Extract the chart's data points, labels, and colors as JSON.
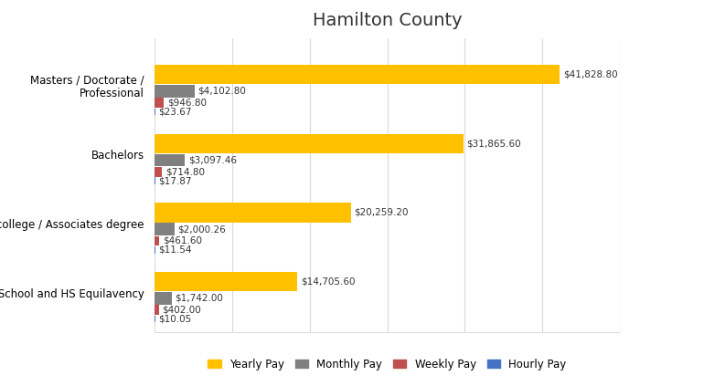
{
  "title": "Hamilton County",
  "categories": [
    "Masters / Doctorate /\nProfessional",
    "Bachelors",
    "Some college / Associates degree",
    "High School and HS Equilavency"
  ],
  "series": {
    "Yearly Pay": [
      41828.8,
      31865.6,
      20259.2,
      14705.6
    ],
    "Monthly Pay": [
      4102.8,
      3097.46,
      2000.26,
      1742.0
    ],
    "Weekly Pay": [
      946.8,
      714.8,
      461.6,
      402.0
    ],
    "Hourly Pay": [
      23.67,
      17.87,
      11.54,
      10.05
    ]
  },
  "colors": {
    "Yearly Pay": "#FFC000",
    "Monthly Pay": "#808080",
    "Weekly Pay": "#C0504D",
    "Hourly Pay": "#4472C4"
  },
  "labels": {
    "Yearly Pay": [
      "$41,828.80",
      "$31,865.60",
      "$20,259.20",
      "$14,705.60"
    ],
    "Monthly Pay": [
      "$4,102.80",
      "$3,097.46",
      "$2,000.26",
      "$1,742.00"
    ],
    "Weekly Pay": [
      "$946.80",
      "$714.80",
      "$461.60",
      "$402.00"
    ],
    "Hourly Pay": [
      "$23.67",
      "$17.87",
      "$11.54",
      "$10.05"
    ]
  },
  "bar_heights": {
    "Yearly Pay": 0.28,
    "Monthly Pay": 0.18,
    "Weekly Pay": 0.14,
    "Hourly Pay": 0.1
  },
  "background_color": "#FFFFFF",
  "plot_bg_color": "#FFFFFF",
  "xlim": [
    0,
    48000
  ],
  "title_fontsize": 14,
  "label_fontsize": 7.5,
  "ytick_fontsize": 8.5,
  "legend_fontsize": 8.5
}
